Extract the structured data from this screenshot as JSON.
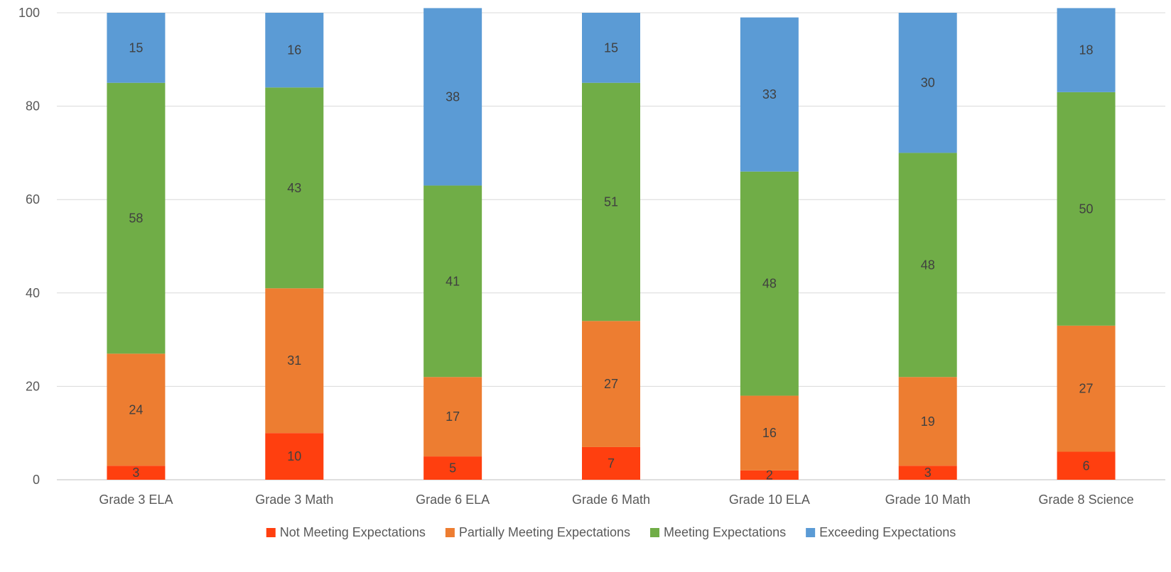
{
  "chart_data": {
    "type": "bar",
    "stacked": true,
    "title": "",
    "xlabel": "",
    "ylabel": "",
    "ylim": [
      0,
      100
    ],
    "yticks": [
      0,
      20,
      40,
      60,
      80,
      100
    ],
    "grid": true,
    "legend_position": "bottom",
    "categories": [
      "Grade 3 ELA",
      "Grade 3 Math",
      "Grade 6 ELA",
      "Grade 6 Math",
      "Grade 10 ELA",
      "Grade 10 Math",
      "Grade 8 Science"
    ],
    "series": [
      {
        "name": "Not Meeting Expectations",
        "color": "#FF3F0F",
        "values": [
          3,
          10,
          5,
          7,
          2,
          3,
          6
        ]
      },
      {
        "name": "Partially Meeting Expectations",
        "color": "#ED7D31",
        "values": [
          24,
          31,
          17,
          27,
          16,
          19,
          27
        ]
      },
      {
        "name": "Meeting Expectations",
        "color": "#70AD47",
        "values": [
          58,
          43,
          41,
          51,
          48,
          48,
          50
        ]
      },
      {
        "name": "Exceeding Expectations",
        "color": "#5B9BD5",
        "values": [
          15,
          16,
          38,
          15,
          33,
          30,
          18
        ]
      }
    ]
  }
}
